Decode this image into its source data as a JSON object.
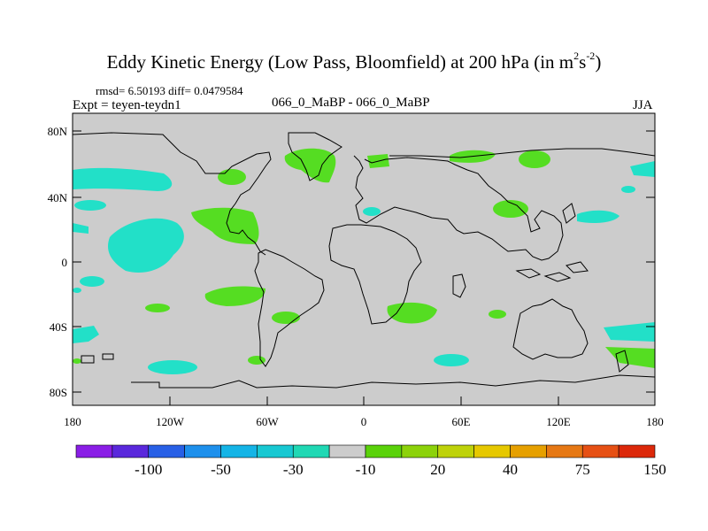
{
  "title": {
    "main": "Eddy Kinetic Energy (Low Pass, Bloomfield) at 200 hPa (in m",
    "sup1": "2",
    "unit_s": "s",
    "sup2": "-2",
    "close": ")"
  },
  "stats": "rmsd= 6.50193 diff= 0.0479584",
  "expt": "Expt = teyen-teydn1",
  "case": "066_0_MaBP - 066_0_MaBP",
  "season": "JJA",
  "axes": {
    "y_ticks": [
      "80N",
      "40N",
      "0",
      "40S",
      "80S"
    ],
    "x_ticks": [
      "180",
      "120W",
      "60W",
      "0",
      "60E",
      "120E",
      "180"
    ]
  },
  "colorbar": {
    "colors": [
      "#8a1ee6",
      "#5a28dc",
      "#2860e6",
      "#1e90ec",
      "#14b4e6",
      "#18c8d2",
      "#20d8b4",
      "#cccccc",
      "#5ad20a",
      "#8cd20a",
      "#bed20a",
      "#e6c800",
      "#e6a000",
      "#e67814",
      "#e65014",
      "#dc280a"
    ],
    "labels": [
      "-100",
      "-50",
      "-30",
      "-10",
      "20",
      "40",
      "75",
      "150"
    ]
  },
  "colors": {
    "land_gray": "#cccccc",
    "positive": "#55dd22",
    "negative": "#22e0c8"
  }
}
